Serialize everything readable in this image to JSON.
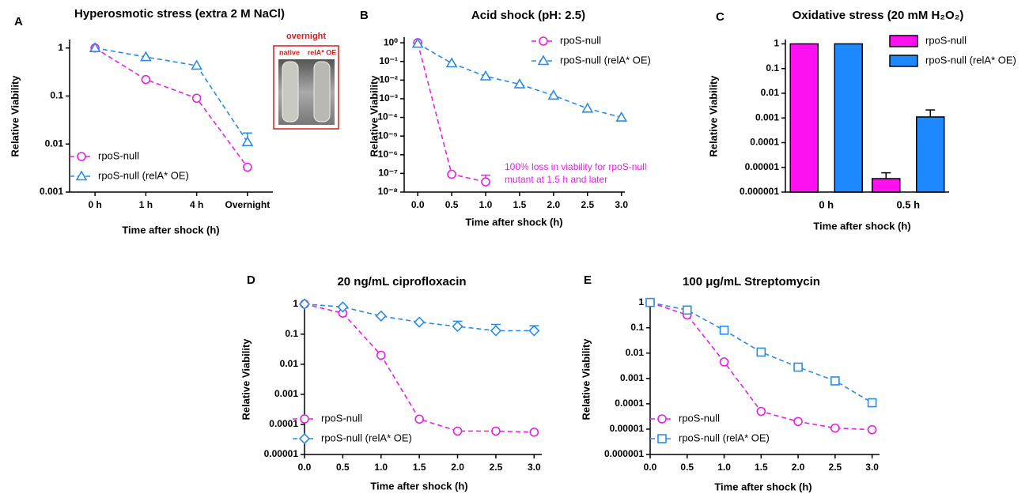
{
  "chart_data": [
    {
      "type": "line",
      "panel_label": "A",
      "title": "Hyperosmotic stress (extra 2 M NaCl)",
      "x_label": "Time after shock (h)",
      "y_label": "Relative Viability",
      "log_y": true,
      "legend": "bottom-left",
      "categories": [
        "0 h",
        "1 h",
        "4 h",
        "Overnight"
      ],
      "ylim": [
        0.001,
        1.5
      ],
      "yticks": [
        0.001,
        0.01,
        0.1,
        1
      ],
      "series": [
        {
          "name": "rpoS-null",
          "color": "#e620e6",
          "marker": "circle",
          "values": [
            1,
            0.22,
            0.09,
            0.0033
          ]
        },
        {
          "name": "rpoS-null (relA* OE)",
          "color": "#2a8ce6",
          "marker": "triangle",
          "values": [
            1,
            0.65,
            0.43,
            0.011
          ],
          "errors": [
            null,
            null,
            null,
            0.006
          ]
        }
      ],
      "inset": {
        "title": "overnight",
        "labels": [
          "native",
          "relA* OE"
        ]
      }
    },
    {
      "type": "line",
      "panel_label": "B",
      "title": "Acid shock (pH: 2.5)",
      "x_label": "Time after shock (h)",
      "y_label": "Relative Viability",
      "log_y": true,
      "legend": "top-right",
      "xlim": [
        -0.2,
        3.05
      ],
      "xticks": [
        {
          "value": 0,
          "label": "0.0"
        },
        0.5,
        {
          "value": 1,
          "label": "1.0"
        },
        1.5,
        {
          "value": 2,
          "label": "2.0"
        },
        2.5,
        {
          "value": 3,
          "label": "3.0"
        }
      ],
      "ylim": [
        1e-08,
        2
      ],
      "yticks": [
        {
          "value": 1e-08,
          "label": "10⁻⁸"
        },
        {
          "value": 1e-07,
          "label": "10⁻⁷"
        },
        {
          "value": 1e-06,
          "label": "10⁻⁶"
        },
        {
          "value": 1e-05,
          "label": "10⁻⁵"
        },
        {
          "value": 0.0001,
          "label": "10⁻⁴"
        },
        {
          "value": 0.001,
          "label": "10⁻³"
        },
        {
          "value": 0.01,
          "label": "10⁻²"
        },
        {
          "value": 0.1,
          "label": "10⁻¹"
        },
        {
          "value": 1,
          "label": "10⁰"
        }
      ],
      "series": [
        {
          "name": "rpoS-null",
          "color": "#e620e6",
          "marker": "circle",
          "x": [
            0,
            0.5,
            1
          ],
          "values": [
            1,
            9e-08,
            3.5e-08
          ],
          "errors": [
            null,
            null,
            4.5e-08
          ]
        },
        {
          "name": "rpoS-null (relA* OE)",
          "color": "#2a8ce6",
          "marker": "triangle",
          "x": [
            0,
            0.5,
            1,
            1.5,
            2,
            2.5,
            3
          ],
          "values": [
            0.9,
            0.08,
            0.016,
            0.006,
            0.0015,
            0.0003,
            0.0001
          ]
        }
      ],
      "annotation": [
        "100% loss in viability for rpoS-null",
        "mutant at 1.5 h and later"
      ]
    },
    {
      "type": "bar",
      "panel_label": "C",
      "title": "Oxidative stress (20 mM H₂O₂)",
      "x_label": "Time after shock (h)",
      "y_label": "Relative Viability",
      "log_y": true,
      "legend": "top-right",
      "categories": [
        "0 h",
        "0.5 h"
      ],
      "ylim": [
        1e-06,
        1.5
      ],
      "yticks": [
        1e-06,
        1e-05,
        0.0001,
        0.001,
        0.01,
        0.1,
        1
      ],
      "series": [
        {
          "name": "rpoS-null",
          "color": "#ff10f0",
          "values": [
            1,
            3.5e-06
          ],
          "errors": [
            null,
            2.5e-06
          ]
        },
        {
          "name": "rpoS-null (relA* OE)",
          "color": "#1e88ff",
          "values": [
            1,
            0.0011
          ],
          "errors": [
            null,
            0.001
          ]
        }
      ]
    },
    {
      "type": "line",
      "panel_label": "D",
      "title": "20 ng/mL ciprofloxacin",
      "x_label": "Time after shock (h)",
      "y_label": "Relative Viability",
      "log_y": true,
      "legend": "bottom-left",
      "x": [
        0,
        0.5,
        1,
        1.5,
        2,
        2.5,
        3
      ],
      "xlim": [
        0,
        3.1
      ],
      "xticks": [
        {
          "value": 0,
          "label": "0.0"
        },
        0.5,
        {
          "value": 1,
          "label": "1.0"
        },
        1.5,
        {
          "value": 2,
          "label": "2.0"
        },
        2.5,
        {
          "value": 3,
          "label": "3.0"
        }
      ],
      "ylim": [
        1e-05,
        1.5
      ],
      "yticks": [
        1e-05,
        0.0001,
        0.001,
        0.01,
        0.1,
        1
      ],
      "series": [
        {
          "name": "rpoS-null",
          "color": "#e620e6",
          "marker": "circle",
          "values": [
            1,
            0.5,
            0.02,
            0.00015,
            6e-05,
            6e-05,
            5.5e-05
          ]
        },
        {
          "name": "rpoS-null (relA* OE)",
          "color": "#2a8ce6",
          "marker": "diamond",
          "values": [
            1,
            0.8,
            0.4,
            0.25,
            0.18,
            0.13,
            0.13
          ],
          "errors": [
            null,
            null,
            null,
            null,
            0.09,
            0.08,
            0.06
          ]
        }
      ]
    },
    {
      "type": "line",
      "panel_label": "E",
      "title": "100 μg/mL Streptomycin",
      "x_label": "Time after shock (h)",
      "y_label": "Relative Viability",
      "log_y": true,
      "legend": "bottom-left",
      "x": [
        0,
        0.5,
        1,
        1.5,
        2,
        2.5,
        3
      ],
      "xlim": [
        0,
        3.1
      ],
      "xticks": [
        {
          "value": 0,
          "label": "0.0"
        },
        0.5,
        {
          "value": 1,
          "label": "1.0"
        },
        1.5,
        {
          "value": 2,
          "label": "2.0"
        },
        2.5,
        {
          "value": 3,
          "label": "3.0"
        }
      ],
      "ylim": [
        1e-06,
        1.5
      ],
      "yticks": [
        1e-06,
        1e-05,
        0.0001,
        0.001,
        0.01,
        0.1,
        1
      ],
      "series": [
        {
          "name": "rpoS-null",
          "color": "#e620e6",
          "marker": "circle",
          "values": [
            1,
            0.32,
            0.0045,
            5e-05,
            2e-05,
            1.1e-05,
            9.5e-06
          ]
        },
        {
          "name": "rpoS-null (relA* OE)",
          "color": "#2a8ce6",
          "marker": "square",
          "values": [
            1,
            0.5,
            0.08,
            0.011,
            0.0028,
            0.0008,
            0.00011
          ]
        }
      ]
    }
  ]
}
